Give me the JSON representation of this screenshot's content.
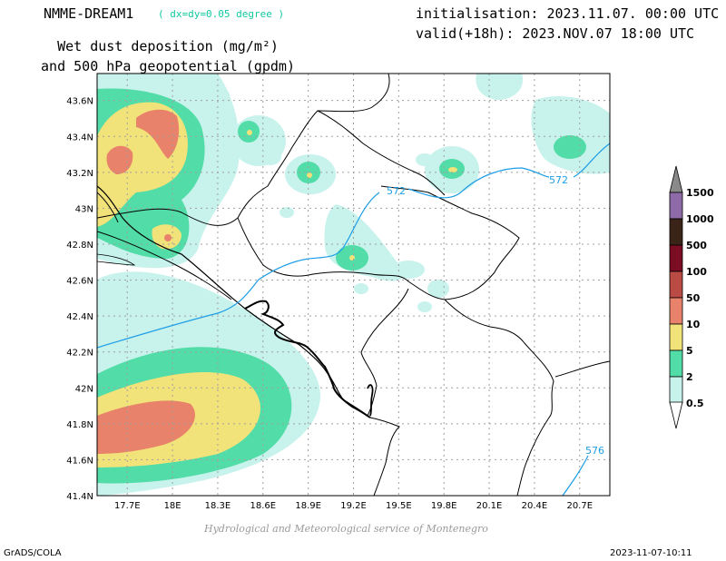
{
  "model": {
    "name": "NMME-DREAM1",
    "resolution": "( dx=dy=0.05 degree )"
  },
  "title": {
    "line1": "Wet dust deposition (mg/m²)",
    "line2": "and 500 hPa geopotential (gpdm)"
  },
  "run": {
    "init": "initialisation: 2023.11.07. 00:00 UTC",
    "valid": "valid(+18h): 2023.NOV.07 18:00 UTC"
  },
  "credit": "Hydrological and Meteorological service of Montenegro",
  "footer": {
    "left": "GrADS/COLA",
    "right": "2023-11-07-10:11"
  },
  "map": {
    "lon_ticks": [
      "17.7E",
      "18E",
      "18.3E",
      "18.6E",
      "18.9E",
      "19.2E",
      "19.5E",
      "19.8E",
      "20.1E",
      "20.4E",
      "20.7E"
    ],
    "lat_ticks": [
      "43.6N",
      "43.4N",
      "43.2N",
      "43N",
      "42.8N",
      "42.6N",
      "42.4N",
      "42.2N",
      "42N",
      "41.8N",
      "41.6N",
      "41.4N"
    ],
    "lon_range": [
      17.5,
      20.9
    ],
    "lat_range": [
      41.4,
      43.75
    ],
    "grid": true
  },
  "contours": [
    {
      "value": "572",
      "label": "572"
    },
    {
      "value": "572",
      "label": "572"
    },
    {
      "value": "576",
      "label": "576"
    }
  ],
  "legend": {
    "levels": [
      "1500",
      "1000",
      "500",
      "100",
      "50",
      "10",
      "5",
      "2",
      "0.5"
    ],
    "colors": [
      "#8f6aa8",
      "#3a2418",
      "#7a0c24",
      "#b94a44",
      "#e8826a",
      "#f2e27a",
      "#52dca8",
      "#c8f2ec"
    ],
    "cap_top_color": "#8a8a8a"
  },
  "colors": {
    "level05": "#c8f2ec",
    "level2": "#52dca8",
    "level5": "#f2e27a",
    "level10": "#e8826a",
    "contour": "#1e9ee6"
  }
}
